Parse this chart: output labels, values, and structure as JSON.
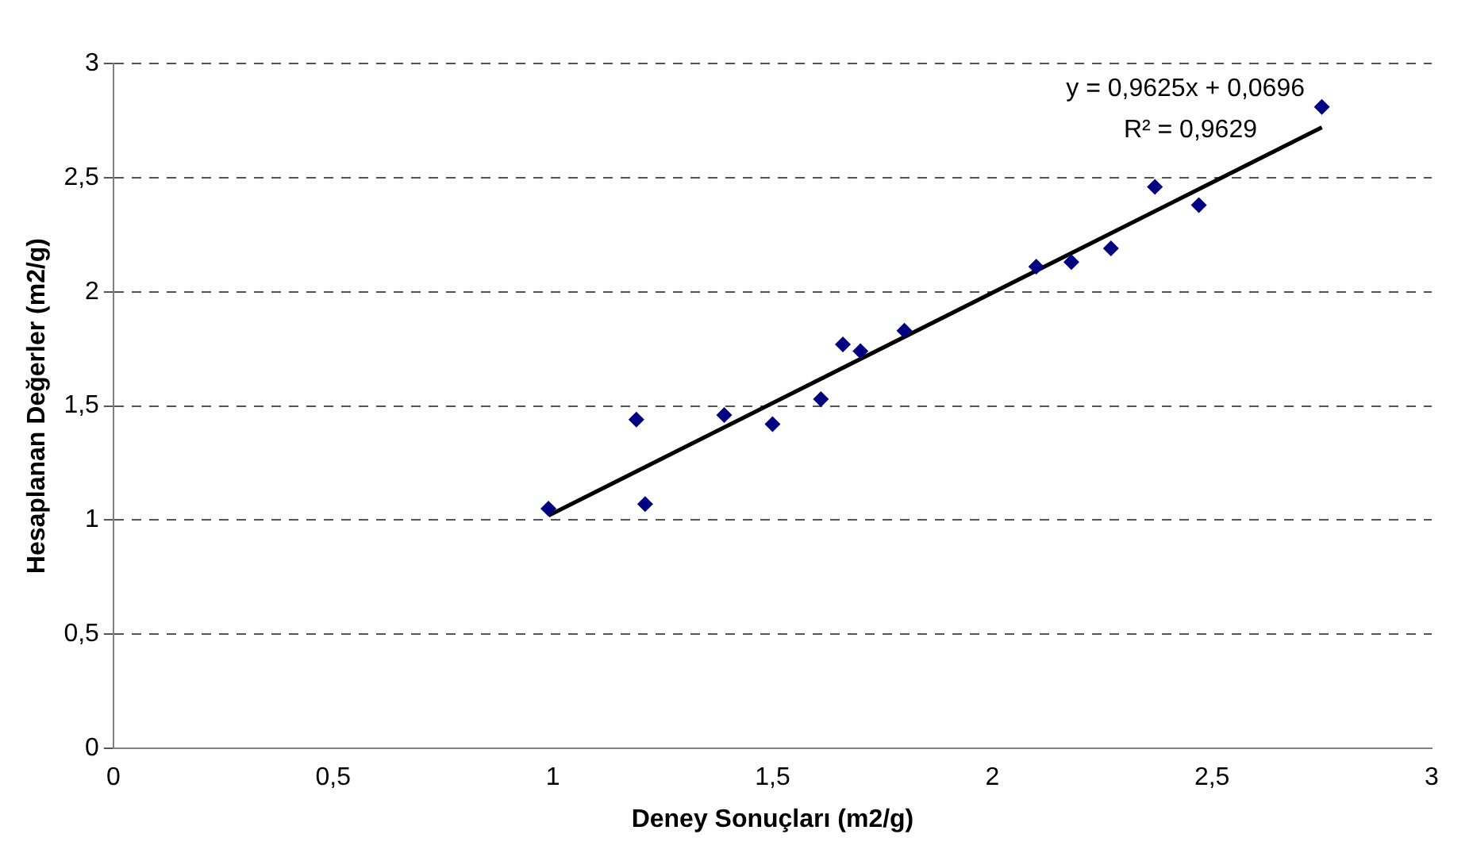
{
  "chart_data": {
    "type": "scatter",
    "xlabel": "Deney Sonuçları (m2/g)",
    "ylabel": "Hesaplanan Değerler (m2/g)",
    "x": [
      0.99,
      1.19,
      1.21,
      1.39,
      1.5,
      1.61,
      1.66,
      1.7,
      1.8,
      2.1,
      2.18,
      2.27,
      2.37,
      2.47,
      2.75
    ],
    "series": [
      {
        "type": "scatter",
        "color": "#000080",
        "marker": "diamond",
        "values": [
          1.05,
          1.44,
          1.07,
          1.46,
          1.42,
          1.53,
          1.77,
          1.74,
          1.83,
          2.11,
          2.13,
          2.19,
          2.46,
          2.38,
          2.81
        ]
      },
      {
        "type": "line",
        "color": "#000000",
        "marker": "none",
        "line_style": "solid",
        "x": [
          0.99,
          2.75
        ],
        "values": [
          1.02,
          2.72
        ]
      }
    ],
    "xlim": [
      0,
      3
    ],
    "ylim": [
      0,
      3
    ],
    "xticks": [
      0,
      {
        "value": 0.5,
        "label": "0,5"
      },
      1,
      {
        "value": 1.5,
        "label": "1,5"
      },
      2,
      {
        "value": 2.5,
        "label": "2,5"
      },
      3
    ],
    "yticks": [
      0,
      {
        "value": 0.5,
        "label": "0,5"
      },
      1,
      {
        "value": 1.5,
        "label": "1,5"
      },
      2,
      {
        "value": 2.5,
        "label": "2,5"
      },
      3
    ],
    "grid": "y",
    "legend": false,
    "annotations": [
      "y = 0,9625x + 0,0696",
      "R² = 0,9629"
    ]
  }
}
